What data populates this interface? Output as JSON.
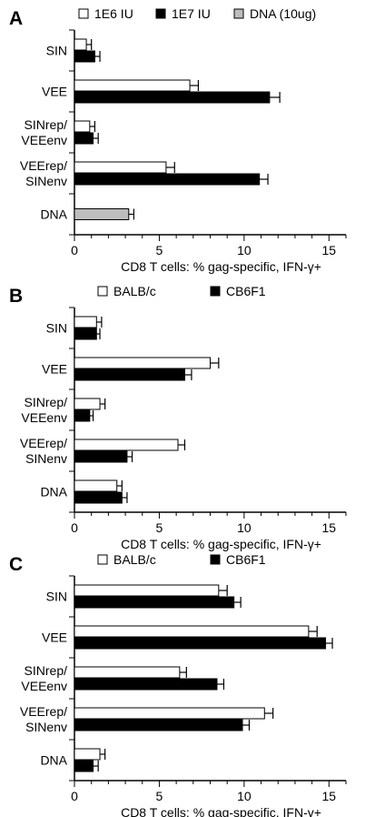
{
  "chart_data": [
    {
      "panel_label": "A",
      "type": "bar",
      "orientation": "horizontal",
      "categories": [
        "SIN",
        "VEE",
        "SINrep/\nVEEenv",
        "VEErep/\nSINenv",
        "DNA"
      ],
      "series": [
        {
          "name": "1E6 IU",
          "color": "#ffffff",
          "values": [
            0.7,
            6.8,
            0.9,
            5.4,
            null
          ],
          "errors": [
            0.3,
            0.5,
            0.3,
            0.5,
            null
          ]
        },
        {
          "name": "1E7 IU",
          "color": "#000000",
          "values": [
            1.2,
            11.5,
            1.1,
            10.9,
            null
          ],
          "errors": [
            0.3,
            0.6,
            0.3,
            0.5,
            null
          ]
        },
        {
          "name": "DNA (10ug)",
          "color": "#bdbdbd",
          "values": [
            null,
            null,
            null,
            null,
            3.2
          ],
          "errors": [
            null,
            null,
            null,
            null,
            0.3
          ]
        }
      ],
      "xlabel": "CD8 T cells: % gag-specific, IFN-γ+",
      "xlim": [
        0,
        16
      ],
      "xticks": [
        0,
        5,
        10,
        15
      ],
      "legend_position": "top"
    },
    {
      "panel_label": "B",
      "type": "bar",
      "orientation": "horizontal",
      "categories": [
        "SIN",
        "VEE",
        "SINrep/\nVEEenv",
        "VEErep/\nSINenv",
        "DNA"
      ],
      "series": [
        {
          "name": "BALB/c",
          "color": "#ffffff",
          "values": [
            1.3,
            8.0,
            1.5,
            6.1,
            2.5
          ],
          "errors": [
            0.3,
            0.5,
            0.3,
            0.4,
            0.3
          ]
        },
        {
          "name": "CB6F1",
          "color": "#000000",
          "values": [
            1.3,
            6.5,
            0.9,
            3.1,
            2.8
          ],
          "errors": [
            0.2,
            0.4,
            0.2,
            0.3,
            0.3
          ]
        }
      ],
      "xlabel": "CD8 T cells: % gag-specific, IFN-γ+",
      "xlim": [
        0,
        16
      ],
      "xticks": [
        0,
        5,
        10,
        15
      ],
      "legend_position": "top"
    },
    {
      "panel_label": "C",
      "type": "bar",
      "orientation": "horizontal",
      "categories": [
        "SIN",
        "VEE",
        "SINrep/\nVEEenv",
        "VEErep/\nSINenv",
        "DNA"
      ],
      "series": [
        {
          "name": "BALB/c",
          "color": "#ffffff",
          "values": [
            8.5,
            13.8,
            6.2,
            11.2,
            1.5
          ],
          "errors": [
            0.5,
            0.5,
            0.4,
            0.5,
            0.3
          ]
        },
        {
          "name": "CB6F1",
          "color": "#000000",
          "values": [
            9.4,
            14.8,
            8.4,
            9.9,
            1.1
          ],
          "errors": [
            0.4,
            0.4,
            0.4,
            0.4,
            0.3
          ]
        }
      ],
      "xlabel": "CD8 T cells: % gag-specific, IFN-γ+",
      "xlim": [
        0,
        16
      ],
      "xticks": [
        0,
        5,
        10,
        15
      ],
      "legend_position": "top"
    }
  ]
}
